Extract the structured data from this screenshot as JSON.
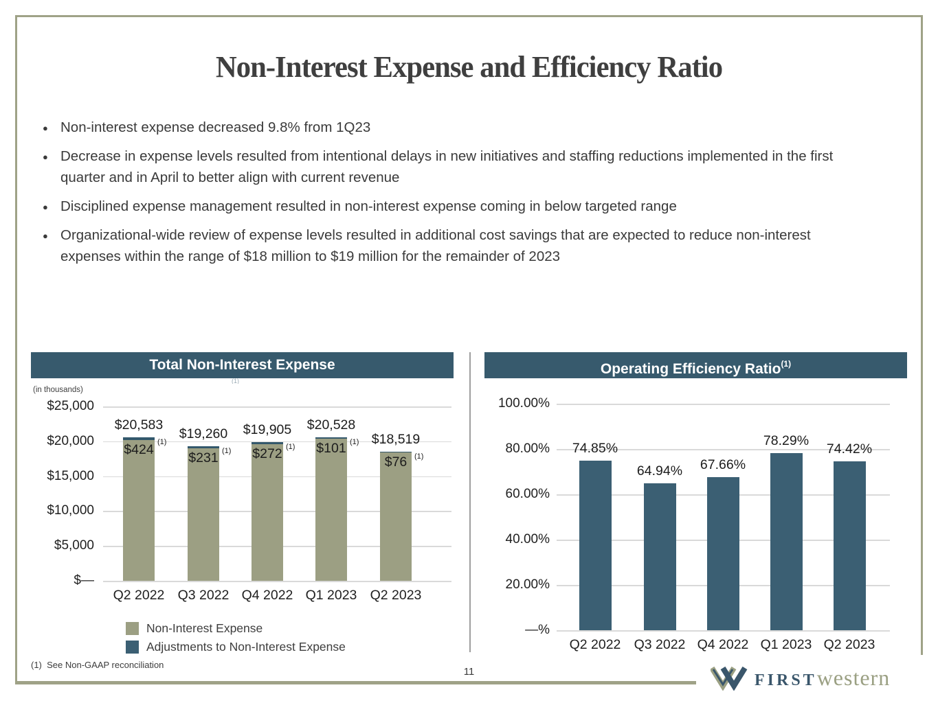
{
  "colors": {
    "header_bg": "#375A6D",
    "bar_teal": "#3B5F73",
    "cap_teal": "#33586C",
    "olive": "#9C9F83",
    "border_olive": "#9FA287",
    "grid": "#D9D9D9",
    "text_dark": "#3C3C3C",
    "logo_navy": "#3A566B",
    "logo_olive": "#9BA083"
  },
  "slide": {
    "title": "Non-Interest Expense and Efficiency Ratio",
    "bullets": [
      "Non-interest expense decreased 9.8% from 1Q23",
      "Decrease in expense levels resulted from intentional delays in new initiatives and staffing reductions implemented in the first quarter and in April to better align with current revenue",
      "Disciplined expense management resulted in non-interest expense coming in below targeted range",
      "Organizational-wide review of expense levels resulted in additional cost savings that are expected to reduce non-interest expenses within the range of $18 million to $19 million for the remainder of 2023"
    ],
    "footnote": "(1)  See Non-GAAP reconciliation",
    "page_number": "11",
    "logo": {
      "first": "FIRST",
      "western": "western"
    }
  },
  "chart_data": [
    {
      "type": "bar",
      "title": "Total Non-Interest Expense",
      "title_superscript_artifact": "(1)",
      "subtitle": "(in thousands)",
      "categories": [
        "Q2 2022",
        "Q3 2022",
        "Q4 2022",
        "Q1 2023",
        "Q2 2023"
      ],
      "series": [
        {
          "name": "Non-Interest Expense",
          "values": [
            20159,
            19029,
            19633,
            20427,
            18443
          ]
        },
        {
          "name": "Adjustments to Non-Interest Expense",
          "values": [
            424,
            231,
            272,
            101,
            76
          ]
        }
      ],
      "totals": [
        20583,
        19260,
        19905,
        20528,
        18519
      ],
      "total_labels": [
        "$20,583",
        "$19,260",
        "$19,905",
        "$20,528",
        "$18,519"
      ],
      "adjustment_labels": [
        "$424",
        "$231",
        "$272",
        "$101",
        "$76"
      ],
      "adjustment_superscript": "(1)",
      "y_ticks": [
        "$25,000",
        "$20,000",
        "$15,000",
        "$10,000",
        "$5,000",
        "$—"
      ],
      "ylim": [
        0,
        25000
      ],
      "grid": true,
      "legend_position": "bottom",
      "stacked": true
    },
    {
      "type": "bar",
      "title": "Operating Efficiency Ratio",
      "title_superscript": "(1)",
      "categories": [
        "Q2 2022",
        "Q3 2022",
        "Q4 2022",
        "Q1 2023",
        "Q2 2023"
      ],
      "values": [
        74.85,
        64.94,
        67.66,
        78.29,
        74.42
      ],
      "value_labels": [
        "74.85%",
        "64.94%",
        "67.66%",
        "78.29%",
        "74.42%"
      ],
      "y_ticks": [
        "100.00%",
        "80.00%",
        "60.00%",
        "40.00%",
        "20.00%",
        "—%"
      ],
      "ylim": [
        0,
        100
      ],
      "grid": true
    }
  ]
}
